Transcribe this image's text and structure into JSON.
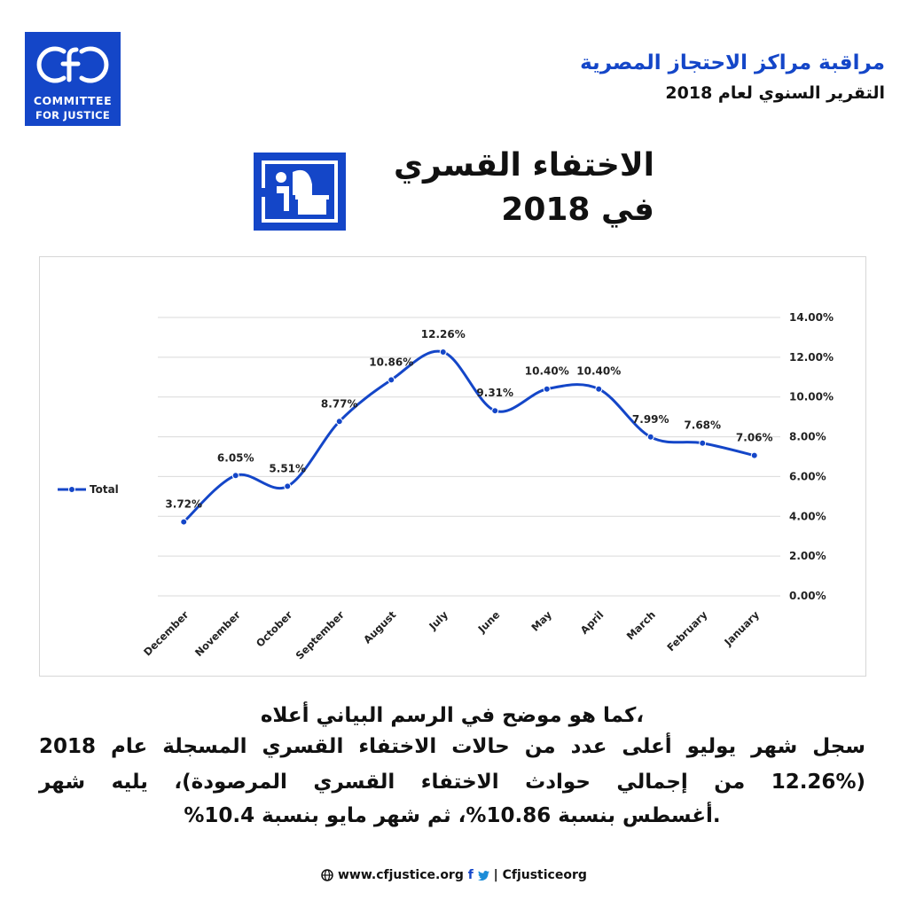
{
  "header": {
    "logo_line1": "COMMITTEE",
    "logo_line2": "FOR JUSTICE",
    "org_title": "مراقبة مراكز الاحتجاز المصرية",
    "report_subtitle": "التقرير السنوي لعام 2018"
  },
  "topic": {
    "title_line1": "الاختفاء القسري",
    "title_line2": "في 2018",
    "icon": "detainee-desk-icon"
  },
  "chart_data": {
    "type": "line",
    "categories": [
      "December",
      "November",
      "October",
      "September",
      "August",
      "July",
      "June",
      "May",
      "April",
      "March",
      "February",
      "January"
    ],
    "series": [
      {
        "name": "Total",
        "values": [
          3.72,
          6.05,
          5.51,
          8.77,
          10.86,
          12.26,
          9.31,
          10.4,
          10.4,
          7.99,
          7.68,
          7.06
        ],
        "labels": [
          "3.72%",
          "6.05%",
          "5.51%",
          "8.77%",
          "10.86%",
          "12.26%",
          "9.31%",
          "10.40%",
          "10.40%",
          "7.99%",
          "7.68%",
          "7.06%"
        ]
      }
    ],
    "y_ticks": [
      "14.00%",
      "12.00%",
      "10.00%",
      "8.00%",
      "6.00%",
      "4.00%",
      "2.00%",
      "0.00%"
    ],
    "ylim": [
      0,
      14
    ],
    "y_axis_side": "right",
    "grid": true,
    "legend_position": "left",
    "line_color": "#1446c8"
  },
  "body": {
    "line1": "،كما هو موضح في الرسم البياني أعلاه",
    "line2": "سجل شهر يوليو أعلى عدد من حالات الاختفاء القسري المسجلة عام 2018",
    "line3": "(12.26% من إجمالي حوادث الاختفاء القسري المرصودة)، يليه شهر",
    "line4": ".أغسطس بنسبة 10.86%، ثم شهر مايو بنسبة 10.4%"
  },
  "footer": {
    "website": "www.cfjustice.org",
    "handle": "Cfjusticeorg",
    "globe_icon": "globe-icon",
    "facebook_icon": "facebook-icon",
    "twitter_icon": "twitter-icon"
  },
  "colors": {
    "brand": "#1446c8"
  }
}
